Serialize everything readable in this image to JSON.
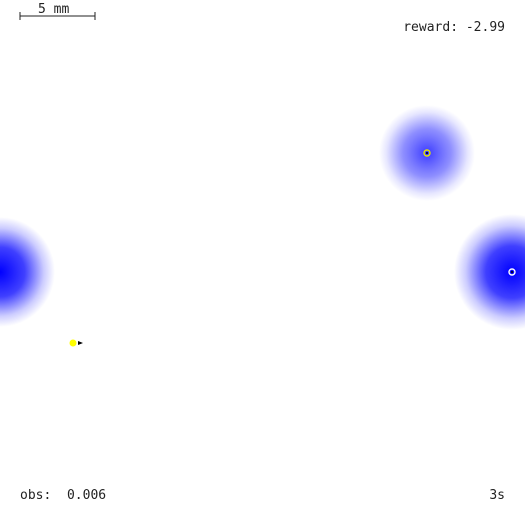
{
  "scale_bar": {
    "label": "5 mm"
  },
  "hud": {
    "reward_label": "reward:",
    "reward_value": "-2.99",
    "obs_label": "obs:",
    "obs_value": "0.006",
    "time": "3s"
  },
  "colors": {
    "background": "#ffffff",
    "odor": "#0000ff",
    "agent": "#ffff00",
    "agent_tip": "#000000",
    "source_marker": "#e6e600"
  },
  "odor_sources": [
    {
      "id": "source-upper-right",
      "intensity": 0.7,
      "marker": true
    },
    {
      "id": "source-right-edge",
      "intensity": 1.0,
      "marker": true
    },
    {
      "id": "source-left-edge",
      "intensity": 1.0,
      "marker": false
    }
  ],
  "agent": {
    "id": "agent",
    "icon": "agent-icon"
  }
}
